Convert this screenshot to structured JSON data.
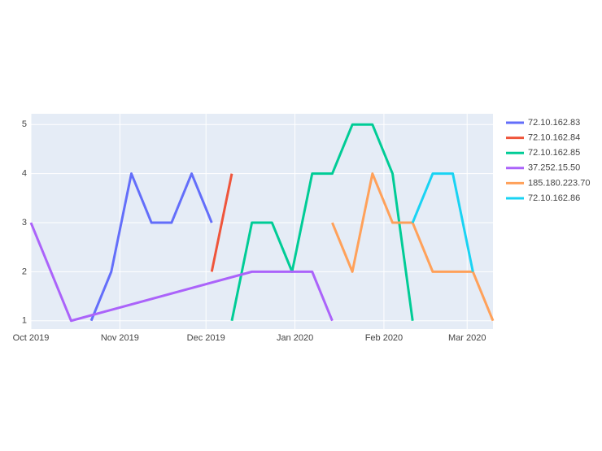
{
  "chart_data": {
    "type": "line",
    "xlim": [
      0,
      161
    ],
    "xticks": [
      {
        "value": 0,
        "label": "Oct 2019"
      },
      {
        "value": 31,
        "label": "Nov 2019"
      },
      {
        "value": 61,
        "label": "Dec 2019"
      },
      {
        "value": 92,
        "label": "Jan 2020"
      },
      {
        "value": 123,
        "label": "Feb 2020"
      },
      {
        "value": 152,
        "label": "Mar 2020"
      }
    ],
    "ylim": [
      0.83,
      5.22
    ],
    "yticks": [
      1,
      2,
      3,
      4,
      5
    ],
    "grid": true,
    "legend": "right",
    "series": [
      {
        "name": "72.10.162.83",
        "color": "#636efa",
        "x": [
          21,
          28,
          35,
          42,
          49,
          56,
          63
        ],
        "values": [
          1,
          2,
          4,
          3,
          3,
          4,
          3
        ]
      },
      {
        "name": "72.10.162.84",
        "color": "#ef553b",
        "x": [
          63,
          70
        ],
        "values": [
          2,
          4
        ]
      },
      {
        "name": "72.10.162.85",
        "color": "#00cc96",
        "x": [
          70,
          77,
          84,
          91,
          98,
          105,
          112,
          119,
          126,
          133
        ],
        "values": [
          1,
          3,
          3,
          2,
          4,
          4,
          5,
          5,
          4,
          1
        ]
      },
      {
        "name": "37.252.15.50",
        "color": "#ab63fa",
        "x": [
          0,
          14,
          77,
          84,
          91,
          98,
          105
        ],
        "values": [
          3,
          1,
          2,
          2,
          2,
          2,
          1
        ]
      },
      {
        "name": "185.180.223.70",
        "color": "#ffa15a",
        "x": [
          105,
          112,
          119,
          126,
          133,
          140,
          147,
          154,
          161
        ],
        "values": [
          3,
          2,
          4,
          3,
          3,
          2,
          2,
          2,
          1
        ]
      },
      {
        "name": "72.10.162.86",
        "color": "#19d3f3",
        "x": [
          133,
          140,
          147,
          154
        ],
        "values": [
          3,
          4,
          4,
          2
        ]
      }
    ]
  }
}
